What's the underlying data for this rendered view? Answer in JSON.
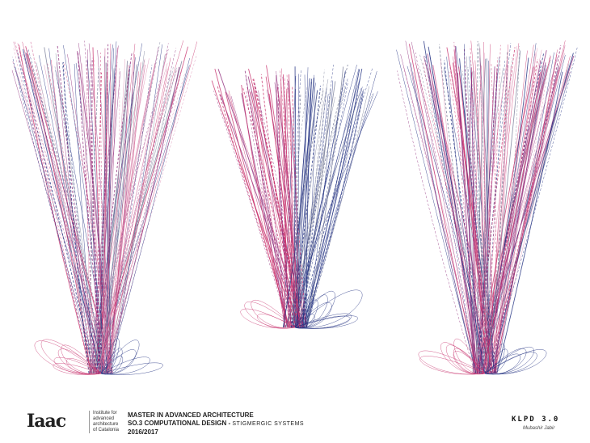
{
  "colors": {
    "pink": "#c8336e",
    "magenta": "#8e2a7a",
    "navy": "#1f2e80",
    "lightpink": "#d98ab0",
    "grey": "#7a7f9a"
  },
  "footer": {
    "logo": "Iaac",
    "logo_subtitle": [
      "Institute for",
      "advanced",
      "architecture",
      "of Catalonia"
    ],
    "course_line1": "MASTER IN ADVANCED ARCHITECTURE",
    "course_line2": "SO.3 COMPUTATIONAL DESIGN -",
    "course_line2_sub": "STIGMERGIC SYSTEMS",
    "course_line3": "2016/2017",
    "project": "KLPD 3.0",
    "author": "Mubashir Jabir"
  }
}
